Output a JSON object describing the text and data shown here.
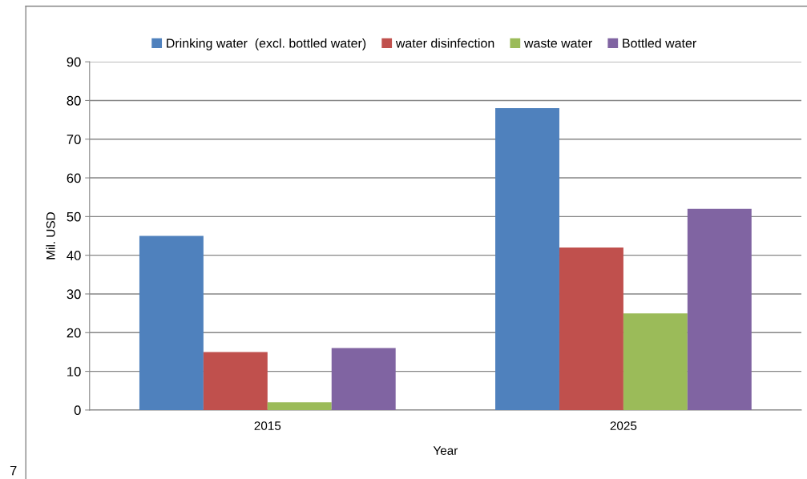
{
  "chart_data": {
    "type": "bar",
    "xlabel": "Year",
    "ylabel": "Mil. USD",
    "categories": [
      "2015",
      "2025"
    ],
    "series": [
      {
        "name": "Drinking water  (excl. bottled water)",
        "color": "#4f81bd",
        "values": [
          45,
          78
        ]
      },
      {
        "name": "water disinfection",
        "color": "#c0504d",
        "values": [
          15,
          42
        ]
      },
      {
        "name": "waste water",
        "color": "#9bbb59",
        "values": [
          2,
          25
        ]
      },
      {
        "name": "Bottled water",
        "color": "#8064a2",
        "values": [
          16,
          52
        ]
      }
    ],
    "ylim": [
      0,
      90
    ],
    "yticks": [
      0,
      10,
      20,
      30,
      40,
      50,
      60,
      70,
      80,
      90
    ],
    "grid": "y",
    "legend": "top",
    "annotations": [
      "7"
    ]
  }
}
